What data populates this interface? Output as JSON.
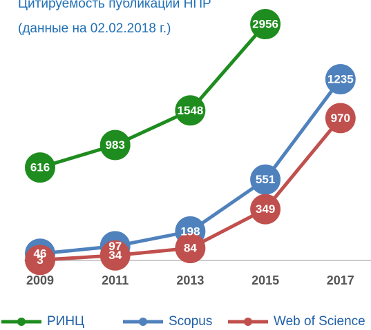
{
  "chart_data": {
    "type": "line",
    "title": "Цитируемость публикаций НПР",
    "subtitle": "(данные на 02.02.2018 г.)",
    "categories": [
      "2009",
      "2011",
      "2013",
      "2015",
      "2017"
    ],
    "ylim": [
      0,
      1775
    ],
    "y2lim": [
      -900,
      3350
    ],
    "legend": "bottom",
    "series": [
      {
        "name": "РИНЦ",
        "color": "#1e8c1e",
        "axis": "y2",
        "values": [
          616,
          983,
          1548,
          2956,
          null
        ]
      },
      {
        "name": "Scopus",
        "color": "#4f81bd",
        "values": [
          46,
          97,
          198,
          551,
          1235
        ]
      },
      {
        "name": "Web of Science",
        "color": "#c0504d",
        "values": [
          3,
          34,
          84,
          349,
          970
        ]
      }
    ]
  }
}
